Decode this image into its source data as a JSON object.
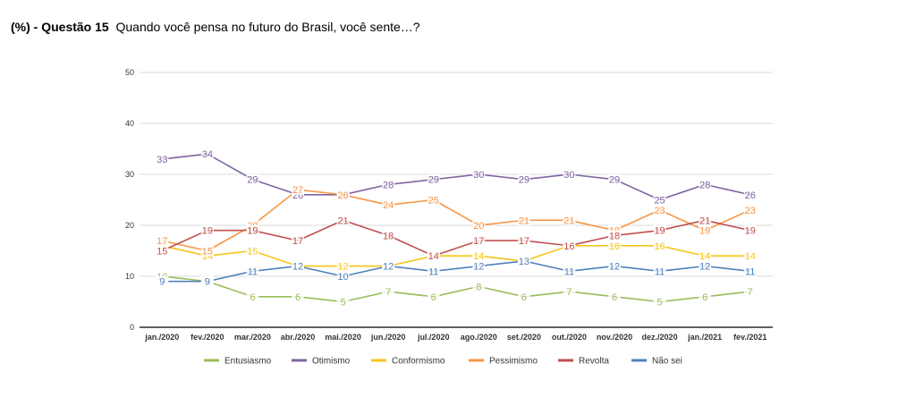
{
  "header": {
    "title_bold": "(%) - Questão 15",
    "title_text": "Quando você pensa no futuro do Brasil, você sente…?"
  },
  "chart_data": {
    "type": "line",
    "title": "(%) - Questão 15  Quando você pensa no futuro do Brasil, você sente…?",
    "categories": [
      "jan./2020",
      "fev./2020",
      "mar./2020",
      "abr./2020",
      "mai./2020",
      "jun./2020",
      "jul./2020",
      "ago./2020",
      "set./2020",
      "out./2020",
      "nov./2020",
      "dez./2020",
      "jan./2021",
      "fev./2021"
    ],
    "ylim": [
      0,
      50
    ],
    "yticks": [
      0,
      10,
      20,
      30,
      40,
      50
    ],
    "grid": true,
    "legend_position": "bottom",
    "data_labels": true,
    "series": [
      {
        "name": "Entusiasmo",
        "color": "#9bbb59",
        "values": [
          10,
          9,
          6,
          6,
          5,
          7,
          6,
          8,
          6,
          7,
          6,
          5,
          6,
          7
        ]
      },
      {
        "name": "Otimismo",
        "color": "#8064a2",
        "values": [
          33,
          34,
          29,
          26,
          26,
          28,
          29,
          30,
          29,
          30,
          29,
          25,
          28,
          26
        ]
      },
      {
        "name": "Conformismo",
        "color": "#f5c518",
        "values": [
          16,
          14,
          15,
          12,
          12,
          12,
          14,
          14,
          13,
          16,
          16,
          16,
          14,
          14
        ]
      },
      {
        "name": "Pessimismo",
        "color": "#f79646",
        "values": [
          17,
          15,
          20,
          27,
          26,
          24,
          25,
          20,
          21,
          21,
          19,
          23,
          19,
          23
        ]
      },
      {
        "name": "Revolta",
        "color": "#c0504d",
        "values": [
          15,
          19,
          19,
          17,
          21,
          18,
          14,
          17,
          17,
          16,
          18,
          19,
          21,
          19
        ]
      },
      {
        "name": "Não sei",
        "color": "#4f81bd",
        "values": [
          9,
          9,
          11,
          12,
          10,
          12,
          11,
          12,
          13,
          11,
          12,
          11,
          12,
          11
        ]
      }
    ]
  }
}
